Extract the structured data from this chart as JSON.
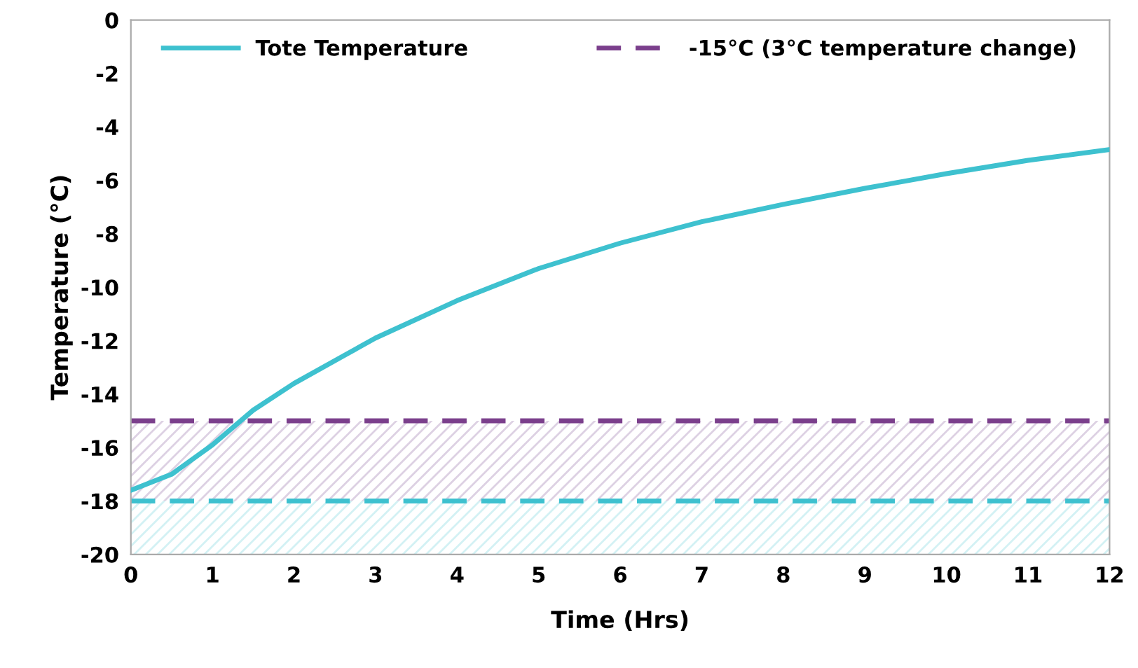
{
  "chart_data": {
    "type": "line",
    "xlabel": "Time (Hrs)",
    "ylabel": "Temperature (°C)",
    "x": [
      0,
      0.5,
      1,
      1.5,
      2,
      3,
      4,
      5,
      6,
      7,
      8,
      9,
      10,
      11,
      12
    ],
    "series": [
      {
        "name": "Tote Temperature",
        "color": "#3ec1cf",
        "values": [
          -17.6,
          -17.0,
          -15.9,
          -14.6,
          -13.6,
          -11.9,
          -10.5,
          -9.3,
          -8.35,
          -7.55,
          -6.9,
          -6.3,
          -5.75,
          -5.25,
          -4.85
        ]
      }
    ],
    "xlim": [
      0,
      12
    ],
    "xticks": [
      0,
      1,
      2,
      3,
      4,
      5,
      6,
      7,
      8,
      9,
      10,
      11,
      12
    ],
    "ylim": [
      -20,
      0
    ],
    "yticks": [
      -20,
      -18,
      -16,
      -14,
      -12,
      -10,
      -8,
      -6,
      -4,
      -2,
      0
    ],
    "ref_lines": [
      {
        "axis": "y",
        "value": -15,
        "label": "-15°C (3°C temperature change)",
        "color": "#7b3f8c",
        "line_style": "dashed"
      },
      {
        "axis": "y",
        "value": -18,
        "color": "#3ec1cf",
        "line_style": "dashed"
      }
    ],
    "bands": [
      {
        "axis": "y",
        "from": -18,
        "to": -15,
        "color": "#b9a2c6"
      },
      {
        "axis": "y",
        "from": -20,
        "to": -18,
        "color": "#a6e3e9"
      }
    ],
    "grid": false,
    "legend": "top",
    "line_style": "solid",
    "marker": "none"
  }
}
